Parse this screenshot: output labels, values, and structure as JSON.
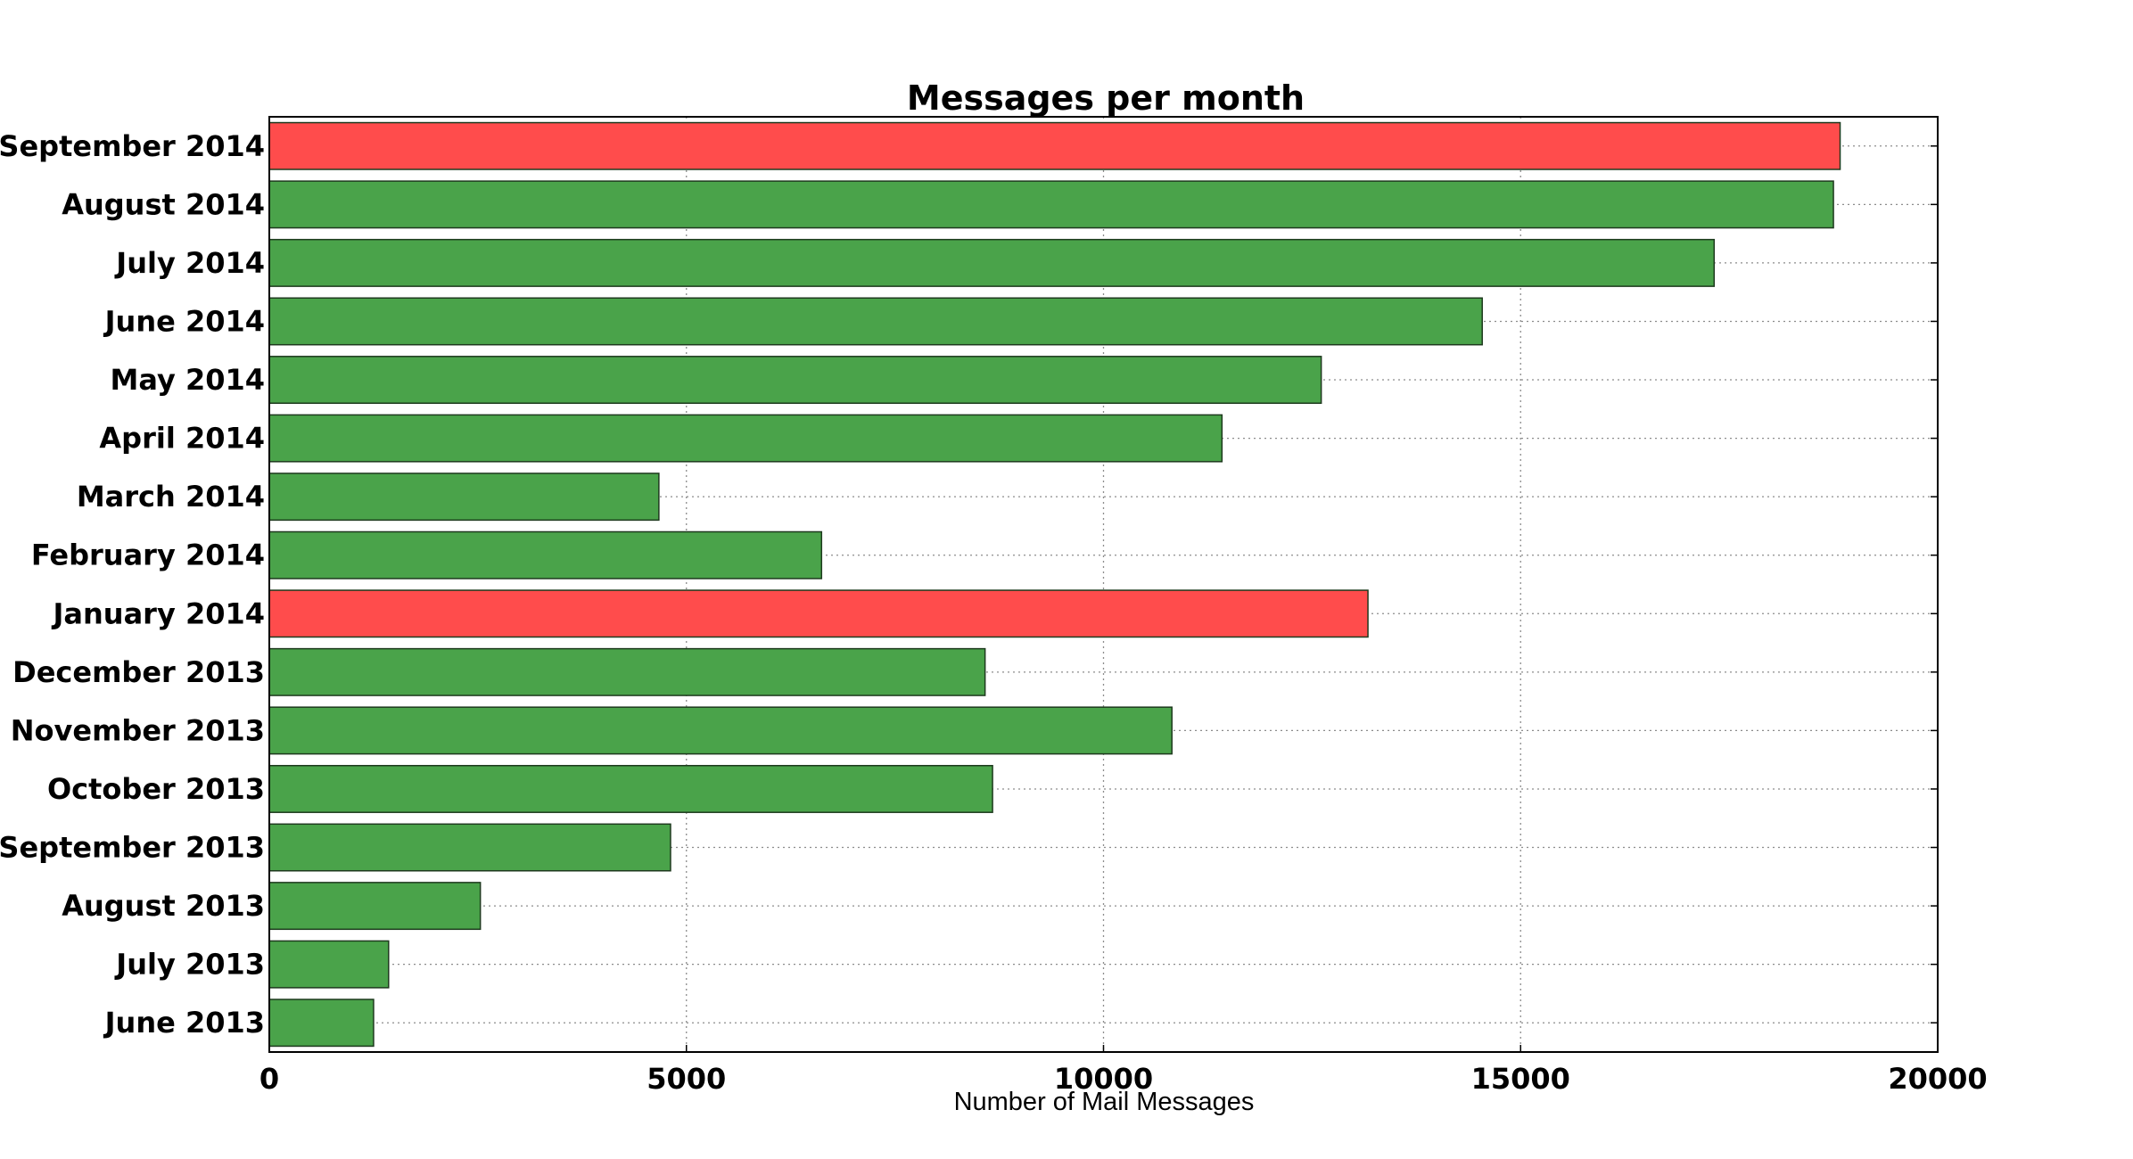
{
  "chart_data": {
    "type": "bar",
    "orientation": "horizontal",
    "title": "Messages per month",
    "xlabel": "Number of Mail Messages",
    "ylabel": "",
    "xlim": [
      0,
      20000
    ],
    "xticks": [
      0,
      5000,
      10000,
      15000,
      20000
    ],
    "grid": true,
    "categories": [
      "September 2014",
      "August 2014",
      "July 2014",
      "June 2014",
      "May 2014",
      "April 2014",
      "March 2014",
      "February 2014",
      "January 2014",
      "December 2013",
      "November 2013",
      "October 2013",
      "September 2013",
      "August 2013",
      "July 2013",
      "June 2013"
    ],
    "values": [
      18830,
      18750,
      17320,
      14540,
      12610,
      11420,
      4670,
      6620,
      13170,
      8580,
      10820,
      8670,
      4810,
      2530,
      1430,
      1250
    ],
    "highlighted": [
      "September 2014",
      "January 2014"
    ],
    "colors": {
      "normal": "#4aa34a",
      "highlight": "#ff4c4c"
    }
  }
}
